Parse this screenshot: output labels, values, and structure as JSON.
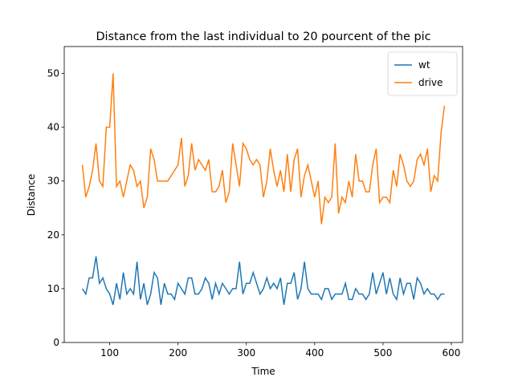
{
  "chart_data": {
    "type": "line",
    "title": "Distance from the last individual to 20 pourcent of the pic",
    "xlabel": "Time",
    "ylabel": "Distance",
    "x": [
      60,
      65,
      70,
      75,
      80,
      85,
      90,
      95,
      100,
      105,
      110,
      115,
      120,
      125,
      130,
      135,
      140,
      145,
      150,
      155,
      160,
      165,
      170,
      175,
      180,
      185,
      190,
      195,
      200,
      205,
      210,
      215,
      220,
      225,
      230,
      235,
      240,
      245,
      250,
      255,
      260,
      265,
      270,
      275,
      280,
      285,
      290,
      295,
      300,
      305,
      310,
      315,
      320,
      325,
      330,
      335,
      340,
      345,
      350,
      355,
      360,
      365,
      370,
      375,
      380,
      385,
      390,
      395,
      400,
      405,
      410,
      415,
      420,
      425,
      430,
      435,
      440,
      445,
      450,
      455,
      460,
      465,
      470,
      475,
      480,
      485,
      490,
      495,
      500,
      505,
      510,
      515,
      520,
      525,
      530,
      535,
      540,
      545,
      550,
      555,
      560,
      565,
      570,
      575,
      580,
      585,
      590
    ],
    "series": [
      {
        "name": "wt",
        "color": "#1f77b4",
        "values": [
          10,
          9,
          12,
          12,
          16,
          11,
          12,
          10,
          9,
          7,
          11,
          8,
          13,
          9,
          10,
          9,
          15,
          8,
          11,
          7,
          9,
          13,
          12,
          7,
          11,
          9,
          9,
          8,
          11,
          10,
          9,
          12,
          12,
          9,
          9,
          10,
          12,
          11,
          8,
          11,
          9,
          11,
          10,
          9,
          10,
          10,
          15,
          9,
          11,
          11,
          13,
          11,
          9,
          10,
          12,
          10,
          11,
          10,
          12,
          7,
          11,
          11,
          13,
          8,
          10,
          15,
          10,
          9,
          9,
          9,
          8,
          10,
          10,
          8,
          9,
          9,
          9,
          11,
          8,
          8,
          10,
          9,
          9,
          8,
          9,
          13,
          9,
          11,
          13,
          9,
          12,
          9,
          8,
          12,
          9,
          11,
          11,
          8,
          12,
          11,
          9,
          10,
          9,
          9,
          8,
          9,
          9
        ]
      },
      {
        "name": "drive",
        "color": "#ff7f0e",
        "values": [
          33,
          27,
          29,
          32,
          37,
          30,
          29,
          40,
          40,
          50,
          29,
          30,
          27,
          30,
          33,
          32,
          29,
          30,
          25,
          27,
          36,
          34,
          30,
          30,
          30,
          30,
          31,
          32,
          33,
          38,
          29,
          31,
          37,
          32,
          34,
          33,
          32,
          34,
          28,
          28,
          29,
          32,
          26,
          28,
          37,
          33,
          29,
          37,
          36,
          34,
          33,
          34,
          33,
          27,
          30,
          36,
          32,
          29,
          32,
          28,
          35,
          28,
          34,
          36,
          27,
          31,
          33,
          30,
          27,
          30,
          22,
          27,
          26,
          27,
          37,
          24,
          27,
          26,
          30,
          27,
          35,
          30,
          30,
          28,
          28,
          33,
          36,
          26,
          27,
          27,
          26,
          32,
          29,
          35,
          33,
          30,
          29,
          30,
          34,
          35,
          33,
          36,
          28,
          31,
          30,
          39,
          44
        ]
      }
    ],
    "xlim": [
      33.5,
      616.5
    ],
    "xticks": [
      100,
      200,
      300,
      400,
      500,
      600
    ],
    "ylim": [
      0,
      55
    ],
    "yticks": [
      0,
      10,
      20,
      30,
      40,
      50
    ],
    "legend": "upper right"
  }
}
